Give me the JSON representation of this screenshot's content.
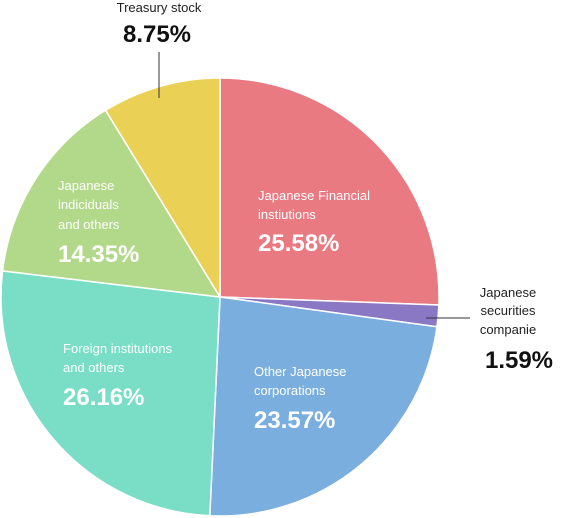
{
  "chart_data": {
    "type": "pie",
    "slices": [
      {
        "label_lines": [
          "Japanese Financial",
          "instiutions"
        ],
        "value": 25.58,
        "value_text": "25.58%",
        "color": "#ea7a82"
      },
      {
        "label_lines": [
          "Japanese",
          "securities",
          "companie"
        ],
        "value": 1.59,
        "value_text": "1.59%",
        "color": "#8a78c4"
      },
      {
        "label_lines": [
          "Other Japanese",
          "corporations"
        ],
        "value": 23.57,
        "value_text": "23.57%",
        "color": "#7aaede"
      },
      {
        "label_lines": [
          "Foreign institutions",
          "and others"
        ],
        "value": 26.16,
        "value_text": "26.16%",
        "color": "#79dec5"
      },
      {
        "label_lines": [
          "Japanese",
          "indiciduals",
          "and others"
        ],
        "value": 14.35,
        "value_text": "14.35%",
        "color": "#b2d98a"
      },
      {
        "label_lines": [
          "Treasury stock"
        ],
        "value": 8.75,
        "value_text": "8.75%",
        "color": "#ead156"
      }
    ]
  }
}
